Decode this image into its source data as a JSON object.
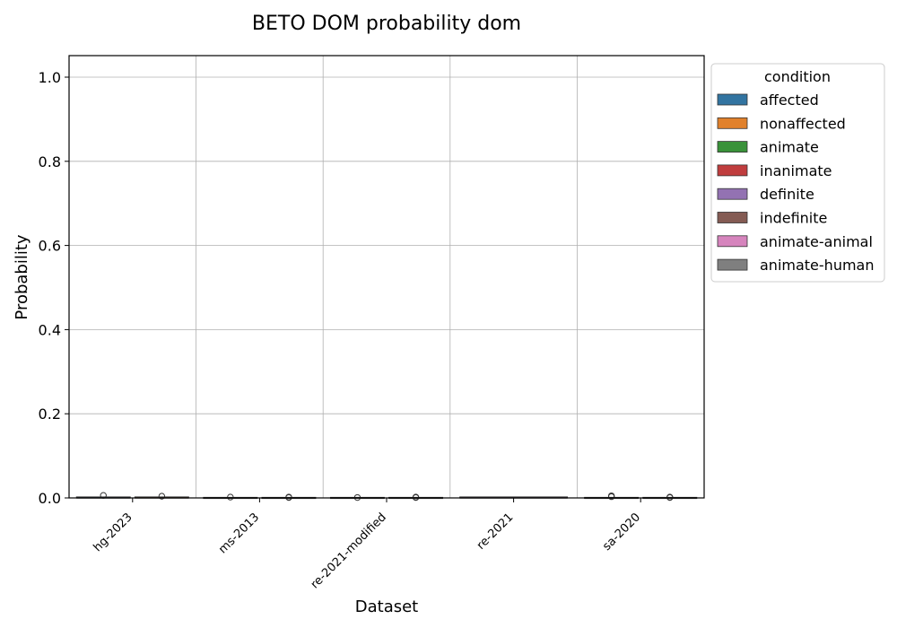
{
  "chart_data": {
    "type": "box",
    "title": "BETO DOM probability dom",
    "xlabel": "Dataset",
    "ylabel": "Probability",
    "ylim": [
      0,
      1.05
    ],
    "yticks": [
      0.0,
      0.2,
      0.4,
      0.6,
      0.8,
      1.0
    ],
    "ytick_labels": [
      "0.0",
      "0.2",
      "0.4",
      "0.6",
      "0.8",
      "1.0"
    ],
    "grid": true,
    "categories": [
      "hg-2023",
      "ms-2013",
      "re-2021-modified",
      "re-2021",
      "sa-2020"
    ],
    "legend": {
      "title": "condition",
      "placement": "outside-right-top",
      "entries": [
        {
          "label": "affected",
          "color": "#3274a1"
        },
        {
          "label": "nonaffected",
          "color": "#e1812c"
        },
        {
          "label": "animate",
          "color": "#3a923a"
        },
        {
          "label": "inanimate",
          "color": "#c03d3e"
        },
        {
          "label": "definite",
          "color": "#9372b2"
        },
        {
          "label": "indefinite",
          "color": "#845b53"
        },
        {
          "label": "animate-animal",
          "color": "#d684bd"
        },
        {
          "label": "animate-human",
          "color": "#7f7f7f"
        }
      ]
    },
    "groups": [
      {
        "category": "hg-2023",
        "boxes": [
          {
            "condition": "affected",
            "q1": 0.0,
            "median": 0.0,
            "q3": 0.001,
            "whisker_high": 0.002,
            "outliers": [
              0.006
            ]
          },
          {
            "condition": "nonaffected",
            "q1": 0.0,
            "median": 0.0,
            "q3": 0.001,
            "whisker_high": 0.002,
            "outliers": [
              0.004
            ]
          }
        ]
      },
      {
        "category": "ms-2013",
        "boxes": [
          {
            "condition": "animate",
            "q1": 0.0,
            "median": 0.0,
            "q3": 0.0,
            "whisker_high": 0.0,
            "outliers": [
              0.002
            ]
          },
          {
            "condition": "inanimate",
            "q1": 0.0,
            "median": 0.0,
            "q3": 0.0,
            "whisker_high": 0.0,
            "outliers": [
              0.002,
              0.001
            ]
          }
        ]
      },
      {
        "category": "re-2021-modified",
        "boxes": [
          {
            "condition": "definite",
            "q1": 0.0,
            "median": 0.0,
            "q3": 0.0,
            "whisker_high": 0.0,
            "outliers": [
              0.001
            ]
          },
          {
            "condition": "indefinite",
            "q1": 0.0,
            "median": 0.0,
            "q3": 0.0,
            "whisker_high": 0.0,
            "outliers": [
              0.002,
              0.001
            ]
          }
        ]
      },
      {
        "category": "re-2021",
        "boxes": [
          {
            "condition": "animate-animal",
            "q1": 0.0,
            "median": 0.0,
            "q3": 0.001,
            "whisker_high": 0.001,
            "outliers": []
          }
        ]
      },
      {
        "category": "sa-2020",
        "boxes": [
          {
            "condition": "definite",
            "q1": 0.0,
            "median": 0.0,
            "q3": 0.0,
            "whisker_high": 0.001,
            "outliers": [
              0.005,
              0.003
            ]
          },
          {
            "condition": "indefinite",
            "q1": 0.0,
            "median": 0.0,
            "q3": 0.0,
            "whisker_high": 0.0,
            "outliers": [
              0.002,
              0.001
            ]
          }
        ]
      }
    ]
  }
}
